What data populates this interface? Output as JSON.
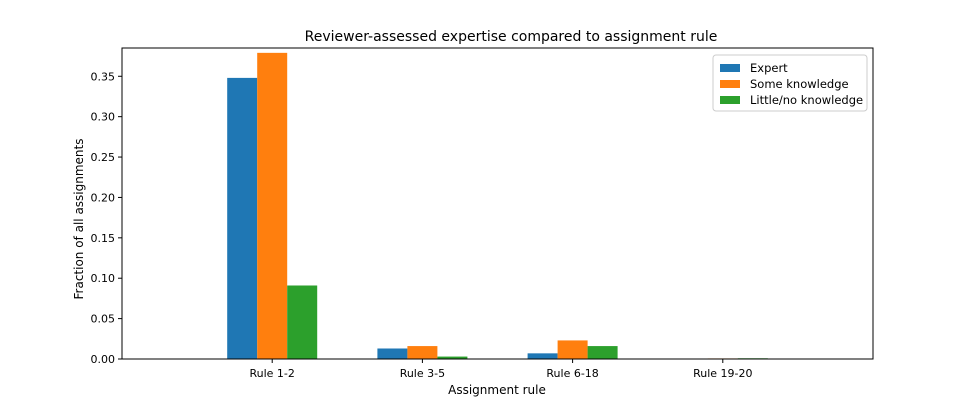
{
  "chart_data": {
    "type": "bar",
    "title": "Reviewer-assessed expertise compared to assignment rule",
    "xlabel": "Assignment rule",
    "ylabel": "Fraction of all assignments",
    "categories": [
      "Rule 1-2",
      "Rule 3-5",
      "Rule 6-18",
      "Rule 19-20"
    ],
    "series": [
      {
        "name": "Expert",
        "color": "#1f77b4",
        "values": [
          0.348,
          0.013,
          0.007,
          0.0005
        ]
      },
      {
        "name": "Some knowledge",
        "color": "#ff7f0e",
        "values": [
          0.379,
          0.016,
          0.023,
          0.0007
        ]
      },
      {
        "name": "Little/no knowledge",
        "color": "#2ca02c",
        "values": [
          0.091,
          0.003,
          0.016,
          0.0009
        ]
      }
    ],
    "ylim": [
      0,
      0.385
    ],
    "yticks": [
      "0.00",
      "0.05",
      "0.10",
      "0.15",
      "0.20",
      "0.25",
      "0.30",
      "0.35"
    ],
    "grid": false,
    "legend": "top-right"
  }
}
